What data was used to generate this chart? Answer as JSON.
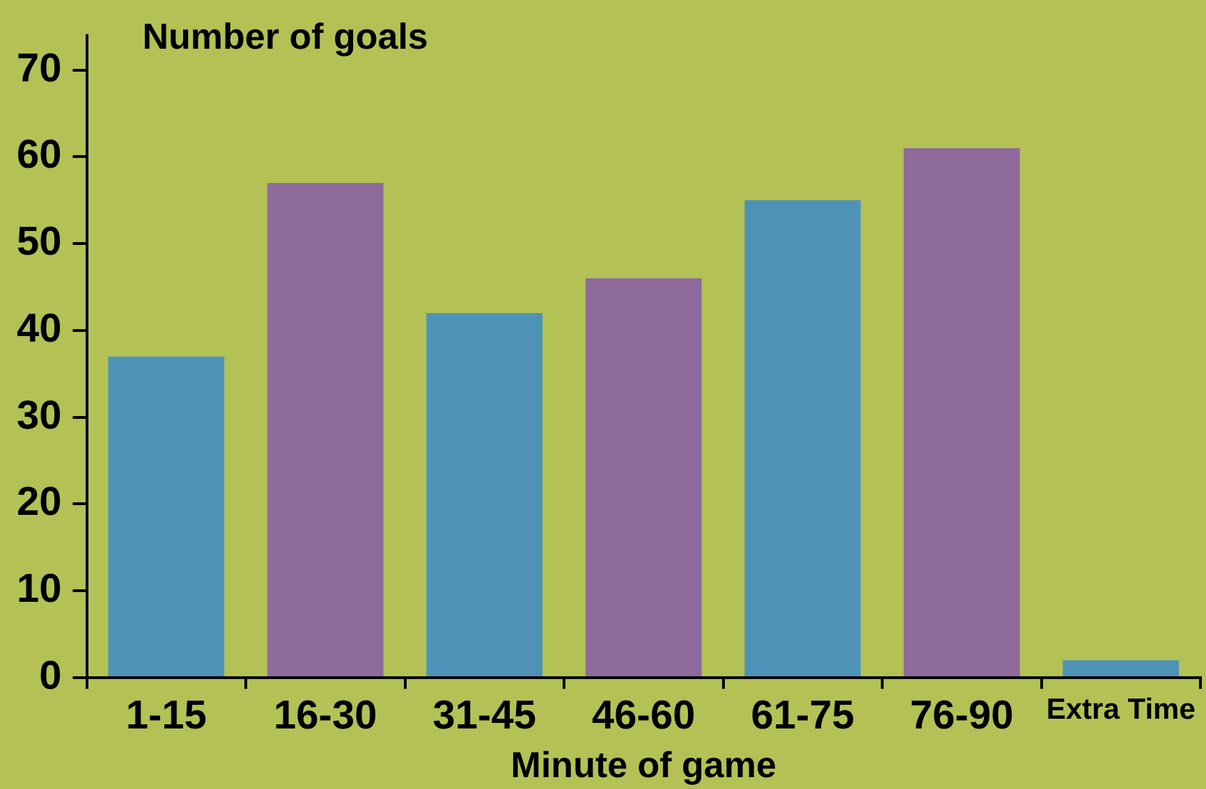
{
  "chart_data": {
    "type": "bar",
    "ylabel": "Number of goals",
    "xlabel": "Minute of game",
    "categories": [
      "1-15",
      "16-30",
      "31-45",
      "46-60",
      "61-75",
      "76-90",
      "Extra Time"
    ],
    "values": [
      37,
      57,
      42,
      46,
      55,
      61,
      2
    ],
    "colors": [
      "#4e93b7",
      "#8e6a9d",
      "#4e93b7",
      "#8e6a9d",
      "#4e93b7",
      "#8e6a9d",
      "#4e93b7"
    ],
    "ylim": [
      0,
      74
    ],
    "yticks": [
      0,
      10,
      20,
      30,
      40,
      50,
      60,
      70
    ],
    "grid": false,
    "legend": false
  }
}
